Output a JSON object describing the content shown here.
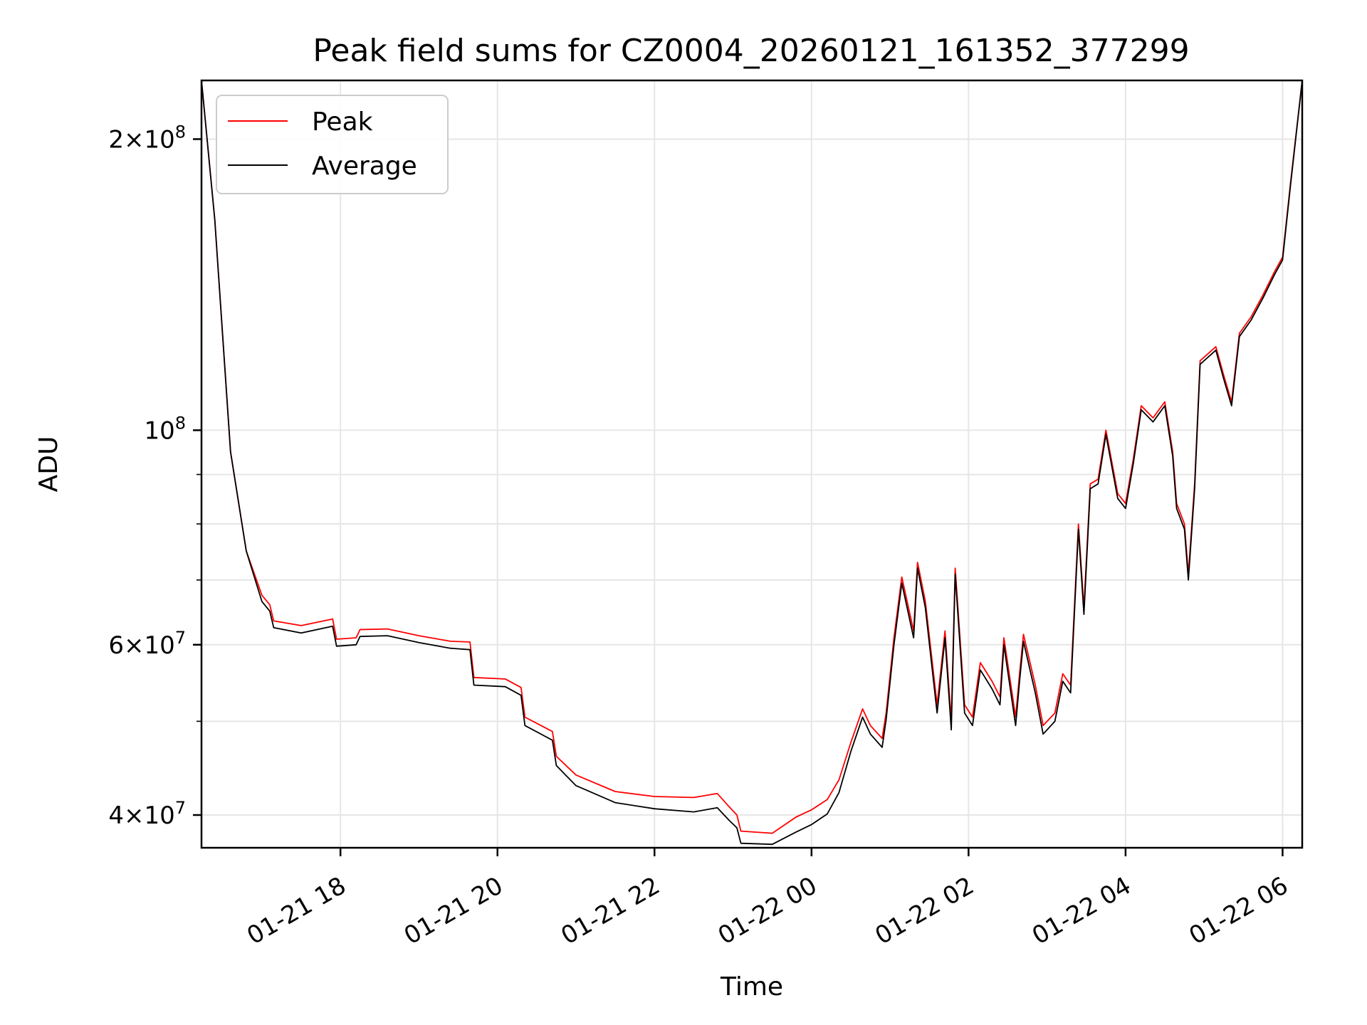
{
  "chart_data": {
    "type": "line",
    "title": "Peak field sums for CZ0004_20260121_161352_377299",
    "xlabel": "Time",
    "ylabel": "ADU",
    "y_scale": "log",
    "xlim_hours": [
      16.23,
      30.25
    ],
    "ylim": [
      37000000,
      230000000
    ],
    "grid": true,
    "legend_location": "upper-left",
    "x_ticks": [
      {
        "label": "01-21 18",
        "hour": 18
      },
      {
        "label": "01-21 20",
        "hour": 20
      },
      {
        "label": "01-21 22",
        "hour": 22
      },
      {
        "label": "01-22 00",
        "hour": 24
      },
      {
        "label": "01-22 02",
        "hour": 26
      },
      {
        "label": "01-22 04",
        "hour": 28
      },
      {
        "label": "01-22 06",
        "hour": 30
      }
    ],
    "y_ticks": [
      {
        "mantissa": "4",
        "exp": "7",
        "value": 40000000
      },
      {
        "mantissa": "6",
        "exp": "7",
        "value": 60000000
      },
      {
        "mantissa": "",
        "exp": "8",
        "value": 100000000
      },
      {
        "mantissa": "2",
        "exp": "8",
        "value": 200000000
      }
    ],
    "y_minor_ticks": [
      50000000,
      70000000,
      80000000,
      90000000
    ],
    "series": [
      {
        "name": "Peak",
        "color": "#ff0000",
        "points": [
          [
            16.23,
            230000000
          ],
          [
            16.4,
            165000000
          ],
          [
            16.6,
            95000000
          ],
          [
            16.8,
            75000000
          ],
          [
            17.0,
            67500000
          ],
          [
            17.1,
            66000000
          ],
          [
            17.15,
            63500000
          ],
          [
            17.5,
            62800000
          ],
          [
            17.9,
            63800000
          ],
          [
            17.95,
            60800000
          ],
          [
            18.2,
            61000000
          ],
          [
            18.25,
            62200000
          ],
          [
            18.6,
            62300000
          ],
          [
            19.0,
            61300000
          ],
          [
            19.4,
            60500000
          ],
          [
            19.65,
            60400000
          ],
          [
            19.7,
            55500000
          ],
          [
            20.1,
            55300000
          ],
          [
            20.3,
            54200000
          ],
          [
            20.35,
            50500000
          ],
          [
            20.7,
            48800000
          ],
          [
            20.75,
            46000000
          ],
          [
            21.0,
            44000000
          ],
          [
            21.5,
            42300000
          ],
          [
            22.0,
            41800000
          ],
          [
            22.5,
            41700000
          ],
          [
            22.8,
            42100000
          ],
          [
            22.95,
            40800000
          ],
          [
            23.05,
            40000000
          ],
          [
            23.1,
            38500000
          ],
          [
            23.5,
            38300000
          ],
          [
            23.8,
            39800000
          ],
          [
            24.0,
            40500000
          ],
          [
            24.2,
            41500000
          ],
          [
            24.35,
            43500000
          ],
          [
            24.5,
            47500000
          ],
          [
            24.65,
            51500000
          ],
          [
            24.75,
            49500000
          ],
          [
            24.9,
            48000000
          ],
          [
            24.95,
            51000000
          ],
          [
            25.05,
            61000000
          ],
          [
            25.15,
            70500000
          ],
          [
            25.3,
            62000000
          ],
          [
            25.35,
            73000000
          ],
          [
            25.45,
            66500000
          ],
          [
            25.6,
            52000000
          ],
          [
            25.7,
            62000000
          ],
          [
            25.78,
            50000000
          ],
          [
            25.83,
            72000000
          ],
          [
            25.95,
            52000000
          ],
          [
            26.05,
            50500000
          ],
          [
            26.15,
            57500000
          ],
          [
            26.3,
            55000000
          ],
          [
            26.4,
            53000000
          ],
          [
            26.45,
            61000000
          ],
          [
            26.6,
            50500000
          ],
          [
            26.65,
            56000000
          ],
          [
            26.7,
            61500000
          ],
          [
            26.85,
            54500000
          ],
          [
            26.95,
            49500000
          ],
          [
            27.1,
            51000000
          ],
          [
            27.2,
            56000000
          ],
          [
            27.3,
            54500000
          ],
          [
            27.4,
            80000000
          ],
          [
            27.47,
            65500000
          ],
          [
            27.55,
            88000000
          ],
          [
            27.65,
            89000000
          ],
          [
            27.75,
            100000000
          ],
          [
            27.9,
            86000000
          ],
          [
            28.0,
            84000000
          ],
          [
            28.1,
            93500000
          ],
          [
            28.2,
            106000000
          ],
          [
            28.35,
            103000000
          ],
          [
            28.5,
            107000000
          ],
          [
            28.6,
            95000000
          ],
          [
            28.65,
            84000000
          ],
          [
            28.75,
            80000000
          ],
          [
            28.8,
            71000000
          ],
          [
            28.88,
            88000000
          ],
          [
            28.95,
            118000000
          ],
          [
            29.15,
            122000000
          ],
          [
            29.25,
            114000000
          ],
          [
            29.35,
            107000000
          ],
          [
            29.45,
            126000000
          ],
          [
            29.6,
            131000000
          ],
          [
            29.75,
            138000000
          ],
          [
            29.9,
            146000000
          ],
          [
            30.0,
            151000000
          ],
          [
            30.1,
            180000000
          ],
          [
            30.25,
            230000000
          ]
        ]
      },
      {
        "name": "Average",
        "color": "#000000",
        "points": [
          [
            16.23,
            230000000
          ],
          [
            16.4,
            165000000
          ],
          [
            16.6,
            95000000
          ],
          [
            16.8,
            75000000
          ],
          [
            17.0,
            66500000
          ],
          [
            17.1,
            65000000
          ],
          [
            17.15,
            62500000
          ],
          [
            17.5,
            61700000
          ],
          [
            17.9,
            62700000
          ],
          [
            17.95,
            59800000
          ],
          [
            18.2,
            60000000
          ],
          [
            18.25,
            61200000
          ],
          [
            18.6,
            61300000
          ],
          [
            19.0,
            60300000
          ],
          [
            19.4,
            59500000
          ],
          [
            19.65,
            59300000
          ],
          [
            19.7,
            54500000
          ],
          [
            20.1,
            54300000
          ],
          [
            20.3,
            53200000
          ],
          [
            20.35,
            49500000
          ],
          [
            20.7,
            47800000
          ],
          [
            20.75,
            45000000
          ],
          [
            21.0,
            42900000
          ],
          [
            21.5,
            41200000
          ],
          [
            22.0,
            40600000
          ],
          [
            22.5,
            40300000
          ],
          [
            22.8,
            40700000
          ],
          [
            22.95,
            39500000
          ],
          [
            23.05,
            38800000
          ],
          [
            23.1,
            37400000
          ],
          [
            23.5,
            37300000
          ],
          [
            23.8,
            38400000
          ],
          [
            24.0,
            39100000
          ],
          [
            24.2,
            40100000
          ],
          [
            24.35,
            42200000
          ],
          [
            24.5,
            46500000
          ],
          [
            24.65,
            50500000
          ],
          [
            24.75,
            48500000
          ],
          [
            24.9,
            47000000
          ],
          [
            24.95,
            50200000
          ],
          [
            25.05,
            60000000
          ],
          [
            25.15,
            69500000
          ],
          [
            25.3,
            61000000
          ],
          [
            25.35,
            72000000
          ],
          [
            25.45,
            65500000
          ],
          [
            25.6,
            51000000
          ],
          [
            25.7,
            61000000
          ],
          [
            25.78,
            49000000
          ],
          [
            25.83,
            71000000
          ],
          [
            25.95,
            51000000
          ],
          [
            26.05,
            49500000
          ],
          [
            26.15,
            56500000
          ],
          [
            26.3,
            54000000
          ],
          [
            26.4,
            52000000
          ],
          [
            26.45,
            60000000
          ],
          [
            26.6,
            49500000
          ],
          [
            26.65,
            55000000
          ],
          [
            26.7,
            60500000
          ],
          [
            26.85,
            53500000
          ],
          [
            26.95,
            48500000
          ],
          [
            27.1,
            50000000
          ],
          [
            27.2,
            55000000
          ],
          [
            27.3,
            53500000
          ],
          [
            27.4,
            79000000
          ],
          [
            27.47,
            64500000
          ],
          [
            27.55,
            87000000
          ],
          [
            27.65,
            88000000
          ],
          [
            27.75,
            99000000
          ],
          [
            27.9,
            85000000
          ],
          [
            28.0,
            83000000
          ],
          [
            28.1,
            92500000
          ],
          [
            28.2,
            105000000
          ],
          [
            28.35,
            102000000
          ],
          [
            28.5,
            106000000
          ],
          [
            28.6,
            94000000
          ],
          [
            28.65,
            83000000
          ],
          [
            28.75,
            79000000
          ],
          [
            28.8,
            70000000
          ],
          [
            28.88,
            87000000
          ],
          [
            28.95,
            117000000
          ],
          [
            29.15,
            121000000
          ],
          [
            29.25,
            113000000
          ],
          [
            29.35,
            106000000
          ],
          [
            29.45,
            125000000
          ],
          [
            29.6,
            130000000
          ],
          [
            29.75,
            137000000
          ],
          [
            29.9,
            145000000
          ],
          [
            30.0,
            150000000
          ],
          [
            30.1,
            179000000
          ],
          [
            30.25,
            230000000
          ]
        ]
      }
    ]
  }
}
